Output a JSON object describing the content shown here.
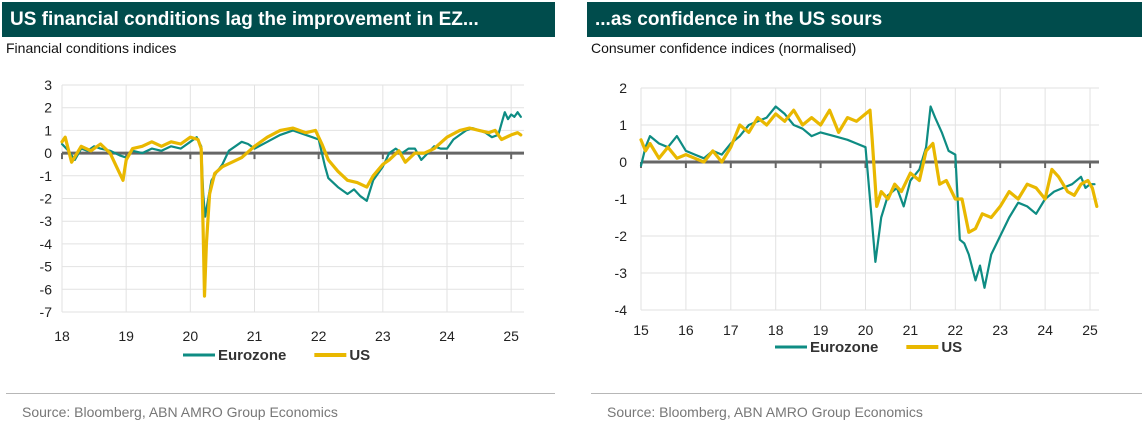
{
  "colors": {
    "title_bg": "#004c4c",
    "eurozone": "#0e8c83",
    "us": "#e9b800",
    "axis": "#666666",
    "grid": "#e2e2e2"
  },
  "source": "Source: Bloomberg, ABN AMRO Group Economics",
  "chart_data": [
    {
      "type": "line",
      "title": "US financial conditions lag the improvement in EZ...",
      "subtitle": "Financial conditions indices",
      "ylim": [
        -7,
        3
      ],
      "yticks": [
        "3",
        "2",
        "1",
        "0",
        "-1",
        "-2",
        "-3",
        "-4",
        "-5",
        "-6",
        "-7"
      ],
      "xlim": [
        2018,
        2025.2
      ],
      "xticks": [
        "18",
        "19",
        "20",
        "21",
        "22",
        "23",
        "24",
        "25"
      ],
      "legend": "bottom",
      "grid": true,
      "series": [
        {
          "name": "Eurozone",
          "color": "#0e8c83",
          "x": [
            2018.0,
            2018.1,
            2018.2,
            2018.3,
            2018.4,
            2018.5,
            2018.6,
            2018.75,
            2018.9,
            2019.0,
            2019.1,
            2019.25,
            2019.4,
            2019.55,
            2019.7,
            2019.85,
            2020.0,
            2020.1,
            2020.17,
            2020.2,
            2020.23,
            2020.28,
            2020.33,
            2020.42,
            2020.5,
            2020.6,
            2020.7,
            2020.8,
            2020.9,
            2021.0,
            2021.2,
            2021.4,
            2021.6,
            2021.8,
            2021.9,
            2022.0,
            2022.1,
            2022.15,
            2022.3,
            2022.45,
            2022.55,
            2022.65,
            2022.75,
            2022.85,
            2023.0,
            2023.1,
            2023.2,
            2023.3,
            2023.4,
            2023.5,
            2023.6,
            2023.7,
            2023.8,
            2023.9,
            2024.0,
            2024.1,
            2024.2,
            2024.3,
            2024.4,
            2024.5,
            2024.6,
            2024.7,
            2024.8,
            2024.85,
            2024.9,
            2024.95,
            2025.0,
            2025.05,
            2025.1,
            2025.15
          ],
          "y": [
            0.4,
            0.1,
            -0.3,
            0.2,
            0.1,
            0.3,
            0.2,
            0.1,
            -0.1,
            -0.2,
            0.1,
            0.0,
            0.2,
            0.1,
            0.3,
            0.2,
            0.5,
            0.7,
            0.3,
            -1.8,
            -2.8,
            -2.0,
            -1.2,
            -0.8,
            -0.5,
            0.1,
            0.3,
            0.5,
            0.4,
            0.2,
            0.5,
            0.8,
            1.0,
            0.8,
            0.7,
            0.6,
            -0.6,
            -1.1,
            -1.5,
            -1.8,
            -1.6,
            -1.9,
            -2.1,
            -1.2,
            -0.6,
            0.0,
            0.2,
            0.0,
            0.2,
            0.2,
            -0.3,
            0.0,
            0.3,
            0.2,
            0.2,
            0.6,
            0.8,
            1.0,
            1.1,
            1.0,
            0.9,
            0.7,
            0.8,
            1.3,
            1.8,
            1.5,
            1.7,
            1.6,
            1.8,
            1.6
          ]
        },
        {
          "name": "US",
          "color": "#e9b800",
          "x": [
            2018.0,
            2018.05,
            2018.15,
            2018.3,
            2018.45,
            2018.6,
            2018.75,
            2018.85,
            2018.95,
            2019.0,
            2019.1,
            2019.25,
            2019.4,
            2019.55,
            2019.7,
            2019.85,
            2020.0,
            2020.12,
            2020.17,
            2020.2,
            2020.22,
            2020.25,
            2020.3,
            2020.38,
            2020.5,
            2020.65,
            2020.8,
            2021.0,
            2021.2,
            2021.4,
            2021.6,
            2021.8,
            2021.95,
            2022.05,
            2022.15,
            2022.3,
            2022.45,
            2022.6,
            2022.75,
            2022.85,
            2023.0,
            2023.1,
            2023.25,
            2023.35,
            2023.5,
            2023.65,
            2023.8,
            2024.0,
            2024.2,
            2024.35,
            2024.5,
            2024.65,
            2024.75,
            2024.85,
            2025.0,
            2025.1,
            2025.15
          ],
          "y": [
            0.5,
            0.7,
            -0.4,
            0.3,
            0.1,
            0.4,
            0.0,
            -0.6,
            -1.2,
            -0.3,
            0.2,
            0.3,
            0.5,
            0.3,
            0.5,
            0.4,
            0.7,
            0.6,
            0.2,
            -3.5,
            -6.3,
            -4.0,
            -1.8,
            -0.9,
            -0.6,
            -0.4,
            -0.2,
            0.3,
            0.7,
            1.0,
            1.1,
            0.9,
            1.0,
            0.4,
            -0.3,
            -0.8,
            -1.2,
            -1.3,
            -1.5,
            -1.0,
            -0.5,
            -0.3,
            0.1,
            -0.4,
            0.0,
            0.0,
            0.2,
            0.7,
            1.0,
            1.1,
            1.0,
            0.9,
            1.0,
            0.6,
            0.8,
            0.9,
            0.8
          ]
        }
      ]
    },
    {
      "type": "line",
      "title": "...as confidence in the US sours",
      "subtitle": "Consumer confidence indices (normalised)",
      "ylim": [
        -4,
        2
      ],
      "yticks": [
        "2",
        "1",
        "0",
        "-1",
        "-2",
        "-3",
        "-4"
      ],
      "xlim": [
        2015,
        2025.2
      ],
      "xticks": [
        "15",
        "16",
        "17",
        "18",
        "19",
        "20",
        "21",
        "22",
        "23",
        "24",
        "25"
      ],
      "legend": "bottom",
      "grid": true,
      "series": [
        {
          "name": "Eurozone",
          "color": "#0e8c83",
          "x": [
            2015.0,
            2015.1,
            2015.2,
            2015.4,
            2015.6,
            2015.8,
            2016.0,
            2016.2,
            2016.4,
            2016.6,
            2016.8,
            2017.0,
            2017.2,
            2017.4,
            2017.6,
            2017.8,
            2018.0,
            2018.2,
            2018.4,
            2018.6,
            2018.8,
            2019.0,
            2019.3,
            2019.6,
            2019.8,
            2020.0,
            2020.1,
            2020.22,
            2020.35,
            2020.5,
            2020.7,
            2020.85,
            2021.0,
            2021.2,
            2021.35,
            2021.45,
            2021.55,
            2021.7,
            2021.85,
            2022.0,
            2022.1,
            2022.2,
            2022.3,
            2022.45,
            2022.55,
            2022.65,
            2022.8,
            2023.0,
            2023.2,
            2023.4,
            2023.6,
            2023.8,
            2024.0,
            2024.2,
            2024.4,
            2024.6,
            2024.8,
            2024.9,
            2025.0,
            2025.1
          ],
          "y": [
            -0.1,
            0.4,
            0.7,
            0.5,
            0.4,
            0.7,
            0.3,
            0.2,
            0.1,
            0.3,
            0.2,
            0.5,
            0.7,
            1.0,
            1.1,
            1.2,
            1.5,
            1.3,
            1.0,
            0.9,
            0.7,
            0.8,
            0.7,
            0.6,
            0.5,
            0.4,
            -1.0,
            -2.7,
            -1.5,
            -0.9,
            -0.7,
            -1.2,
            -0.5,
            -0.2,
            0.4,
            1.5,
            1.2,
            0.8,
            0.3,
            0.2,
            -2.1,
            -2.2,
            -2.5,
            -3.2,
            -2.8,
            -3.4,
            -2.5,
            -2.0,
            -1.5,
            -1.1,
            -1.2,
            -1.4,
            -1.0,
            -0.8,
            -0.7,
            -0.6,
            -0.4,
            -0.7,
            -0.6,
            -0.6
          ]
        },
        {
          "name": "US",
          "color": "#e9b800",
          "x": [
            2015.0,
            2015.1,
            2015.2,
            2015.4,
            2015.6,
            2015.8,
            2016.0,
            2016.2,
            2016.4,
            2016.6,
            2016.8,
            2017.0,
            2017.2,
            2017.4,
            2017.6,
            2017.8,
            2018.0,
            2018.2,
            2018.4,
            2018.6,
            2018.8,
            2019.0,
            2019.2,
            2019.4,
            2019.6,
            2019.8,
            2020.0,
            2020.1,
            2020.15,
            2020.25,
            2020.35,
            2020.5,
            2020.65,
            2020.8,
            2021.0,
            2021.2,
            2021.35,
            2021.5,
            2021.65,
            2021.8,
            2022.0,
            2022.15,
            2022.3,
            2022.45,
            2022.6,
            2022.8,
            2023.0,
            2023.2,
            2023.4,
            2023.6,
            2023.8,
            2024.0,
            2024.15,
            2024.3,
            2024.5,
            2024.65,
            2024.8,
            2024.95,
            2025.05,
            2025.15
          ],
          "y": [
            0.6,
            0.3,
            0.5,
            0.1,
            0.4,
            0.1,
            0.2,
            0.1,
            0.0,
            0.3,
            0.0,
            0.4,
            1.0,
            0.8,
            1.2,
            1.0,
            1.3,
            1.1,
            1.4,
            1.0,
            1.2,
            1.0,
            1.4,
            0.8,
            1.2,
            1.1,
            1.3,
            1.4,
            0.6,
            -1.2,
            -0.8,
            -1.0,
            -0.6,
            -0.8,
            -0.3,
            -0.5,
            0.3,
            0.5,
            -0.6,
            -0.5,
            -1.0,
            -1.0,
            -1.9,
            -1.8,
            -1.4,
            -1.5,
            -1.2,
            -0.8,
            -1.0,
            -0.6,
            -0.7,
            -1.0,
            -0.2,
            -0.4,
            -0.8,
            -0.9,
            -0.6,
            -0.5,
            -0.7,
            -1.2
          ]
        }
      ]
    }
  ]
}
